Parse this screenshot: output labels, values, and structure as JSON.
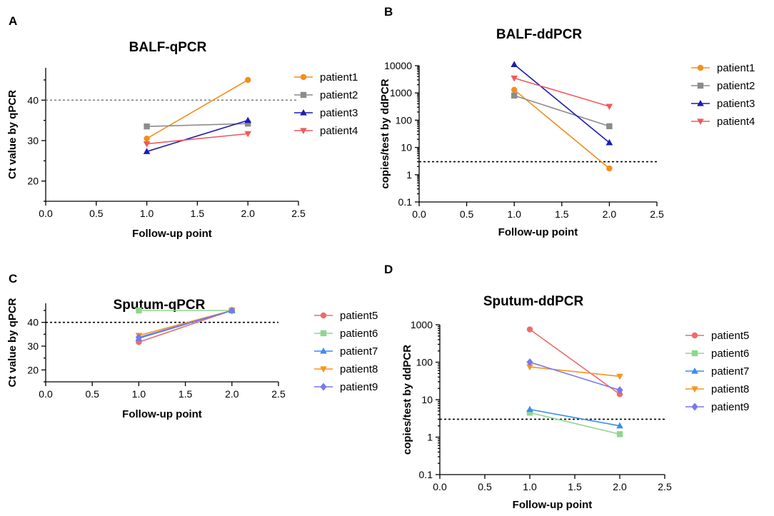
{
  "chart_data": [
    {
      "panel": "A",
      "type": "line",
      "title": "BALF-qPCR",
      "xlabel": "Follow-up point",
      "ylabel": "Ct value by qPCR",
      "yscale": "linear",
      "xlim": [
        0,
        2.5
      ],
      "ylim": [
        15,
        48
      ],
      "xticks": [
        0,
        0.5,
        1,
        1.5,
        2,
        2.5
      ],
      "xtick_labels": [
        "0.0",
        "0.5",
        "1.0",
        "1.5",
        "2.0",
        "2.5"
      ],
      "yticks": [
        20,
        30,
        40
      ],
      "ytick_labels": [
        "20",
        "30",
        "40"
      ],
      "reference_line": {
        "y": 40,
        "color": "#808080"
      },
      "legend_position": "right",
      "series": [
        {
          "name": "patient1",
          "color": "#f28e1c",
          "marker": "circle",
          "x": [
            1,
            2
          ],
          "y": [
            30.5,
            45
          ]
        },
        {
          "name": "patient2",
          "color": "#8c8c8c",
          "marker": "square",
          "x": [
            1,
            2
          ],
          "y": [
            33.5,
            34.2
          ]
        },
        {
          "name": "patient3",
          "color": "#1c1cb4",
          "marker": "triangle-up",
          "x": [
            1,
            2
          ],
          "y": [
            27.3,
            35
          ]
        },
        {
          "name": "patient4",
          "color": "#f05a5a",
          "marker": "triangle-down",
          "x": [
            1,
            2
          ],
          "y": [
            29.2,
            31.7
          ]
        }
      ]
    },
    {
      "panel": "B",
      "type": "line",
      "title": "BALF-ddPCR",
      "xlabel": "Follow-up point",
      "ylabel": "copies/test by ddPCR",
      "yscale": "log",
      "xlim": [
        0,
        2.5
      ],
      "ylim": [
        0.1,
        10000
      ],
      "xticks": [
        0,
        0.5,
        1,
        1.5,
        2,
        2.5
      ],
      "xtick_labels": [
        "0.0",
        "0.5",
        "1.0",
        "1.5",
        "2.0",
        "2.5"
      ],
      "yticks": [
        0.1,
        1,
        10,
        100,
        1000,
        10000
      ],
      "ytick_labels": [
        "0.1",
        "1",
        "10",
        "100",
        "1000",
        "10000"
      ],
      "reference_line": {
        "y": 3,
        "color": "#000000"
      },
      "legend_position": "right",
      "series": [
        {
          "name": "patient1",
          "color": "#f28e1c",
          "marker": "circle",
          "x": [
            1,
            2
          ],
          "y": [
            1300,
            1.7
          ]
        },
        {
          "name": "patient2",
          "color": "#8c8c8c",
          "marker": "square",
          "x": [
            1,
            2
          ],
          "y": [
            800,
            60
          ]
        },
        {
          "name": "patient3",
          "color": "#1c1cb4",
          "marker": "triangle-up",
          "x": [
            1,
            2
          ],
          "y": [
            11000,
            15
          ]
        },
        {
          "name": "patient4",
          "color": "#f05a5a",
          "marker": "triangle-down",
          "x": [
            1,
            2
          ],
          "y": [
            3500,
            320
          ]
        }
      ]
    },
    {
      "panel": "C",
      "type": "line",
      "title": "Sputum-qPCR",
      "xlabel": "Follow-up point",
      "ylabel": "Ct value by qPCR",
      "yscale": "linear",
      "xlim": [
        0,
        2.5
      ],
      "ylim": [
        15,
        48
      ],
      "xticks": [
        0,
        0.5,
        1,
        1.5,
        2,
        2.5
      ],
      "xtick_labels": [
        "0.0",
        "0.5",
        "1.0",
        "1.5",
        "2.0",
        "2.5"
      ],
      "yticks": [
        20,
        30,
        40
      ],
      "ytick_labels": [
        "20",
        "30",
        "40"
      ],
      "reference_line": {
        "y": 40,
        "color": "#000000"
      },
      "legend_position": "right",
      "series": [
        {
          "name": "patient5",
          "color": "#f06a6a",
          "marker": "circle",
          "x": [
            1,
            2
          ],
          "y": [
            31.7,
            45
          ]
        },
        {
          "name": "patient6",
          "color": "#8fd68f",
          "marker": "square",
          "x": [
            1,
            2
          ],
          "y": [
            45,
            45
          ]
        },
        {
          "name": "patient7",
          "color": "#3c8cf0",
          "marker": "triangle-up",
          "x": [
            1,
            2
          ],
          "y": [
            33.3,
            45
          ]
        },
        {
          "name": "patient8",
          "color": "#f5961e",
          "marker": "triangle-down",
          "x": [
            1,
            2
          ],
          "y": [
            34.5,
            45
          ]
        },
        {
          "name": "patient9",
          "color": "#7878f0",
          "marker": "diamond",
          "x": [
            1,
            2
          ],
          "y": [
            33.7,
            45
          ]
        }
      ]
    },
    {
      "panel": "D",
      "type": "line",
      "title": "Sputum-ddPCR",
      "xlabel": "Follow-up point",
      "ylabel": "copies/test by ddPCR",
      "yscale": "log",
      "xlim": [
        0,
        2.5
      ],
      "ylim": [
        0.1,
        1000
      ],
      "xticks": [
        0,
        0.5,
        1,
        1.5,
        2,
        2.5
      ],
      "xtick_labels": [
        "0.0",
        "0.5",
        "1.0",
        "1.5",
        "2.0",
        "2.5"
      ],
      "yticks": [
        0.1,
        1,
        10,
        100,
        1000
      ],
      "ytick_labels": [
        "0.1",
        "1",
        "10",
        "100",
        "1000"
      ],
      "reference_line": {
        "y": 3,
        "color": "#000000"
      },
      "legend_position": "right",
      "series": [
        {
          "name": "patient5",
          "color": "#f06a6a",
          "marker": "circle",
          "x": [
            1,
            2
          ],
          "y": [
            750,
            14
          ]
        },
        {
          "name": "patient6",
          "color": "#8fd68f",
          "marker": "square",
          "x": [
            1,
            2
          ],
          "y": [
            4.5,
            1.2
          ]
        },
        {
          "name": "patient7",
          "color": "#3c8cf0",
          "marker": "triangle-up",
          "x": [
            1,
            2
          ],
          "y": [
            5.5,
            2
          ]
        },
        {
          "name": "patient8",
          "color": "#f5961e",
          "marker": "triangle-down",
          "x": [
            1,
            2
          ],
          "y": [
            75,
            42
          ]
        },
        {
          "name": "patient9",
          "color": "#7878f0",
          "marker": "diamond",
          "x": [
            1,
            2
          ],
          "y": [
            100,
            18
          ]
        }
      ]
    }
  ]
}
